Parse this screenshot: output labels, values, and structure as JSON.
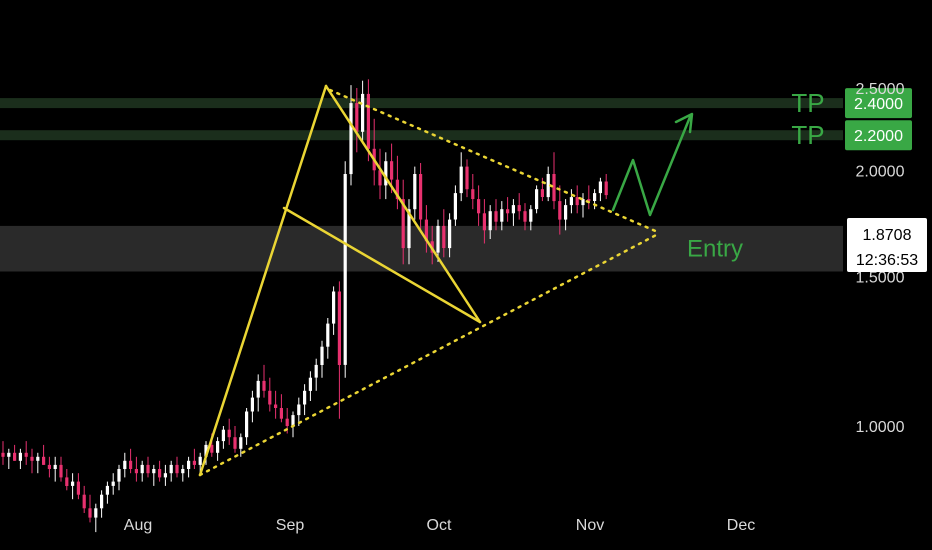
{
  "chart_data": {
    "type": "candlestick",
    "title": "",
    "xlabel": "",
    "ylabel": "",
    "x_ticks": [
      "Aug",
      "Sep",
      "Oct",
      "Nov",
      "Dec"
    ],
    "y_ticks": [
      "2.5000",
      "2.0000",
      "1.5000",
      "1.0000"
    ],
    "ylim": [
      0.72,
      2.6
    ],
    "grid": false,
    "last_price": "1.8708",
    "countdown": "12:36:53",
    "levels": [
      {
        "label": "TP",
        "value": 2.4,
        "price_tag": "2.4000"
      },
      {
        "label": "TP",
        "value": 2.2,
        "price_tag": "2.2000"
      }
    ],
    "entry_zone": {
      "label": "Entry",
      "low": 1.52,
      "high": 1.72
    },
    "candles": [
      [
        0.93,
        0.96,
        0.9,
        0.92
      ],
      [
        0.92,
        0.94,
        0.89,
        0.93
      ],
      [
        0.93,
        0.95,
        0.91,
        0.91
      ],
      [
        0.91,
        0.94,
        0.89,
        0.93
      ],
      [
        0.93,
        0.96,
        0.9,
        0.92
      ],
      [
        0.92,
        0.94,
        0.88,
        0.91
      ],
      [
        0.91,
        0.93,
        0.88,
        0.92
      ],
      [
        0.92,
        0.95,
        0.9,
        0.9
      ],
      [
        0.9,
        0.92,
        0.87,
        0.89
      ],
      [
        0.89,
        0.92,
        0.86,
        0.9
      ],
      [
        0.9,
        0.92,
        0.86,
        0.87
      ],
      [
        0.87,
        0.89,
        0.84,
        0.85
      ],
      [
        0.85,
        0.88,
        0.82,
        0.86
      ],
      [
        0.86,
        0.88,
        0.82,
        0.83
      ],
      [
        0.83,
        0.85,
        0.79,
        0.8
      ],
      [
        0.8,
        0.83,
        0.77,
        0.78
      ],
      [
        0.78,
        0.81,
        0.75,
        0.8
      ],
      [
        0.8,
        0.84,
        0.78,
        0.83
      ],
      [
        0.83,
        0.86,
        0.81,
        0.85
      ],
      [
        0.85,
        0.88,
        0.83,
        0.86
      ],
      [
        0.86,
        0.9,
        0.84,
        0.89
      ],
      [
        0.89,
        0.93,
        0.87,
        0.91
      ],
      [
        0.91,
        0.94,
        0.88,
        0.89
      ],
      [
        0.89,
        0.92,
        0.86,
        0.88
      ],
      [
        0.88,
        0.91,
        0.86,
        0.9
      ],
      [
        0.9,
        0.92,
        0.87,
        0.88
      ],
      [
        0.88,
        0.9,
        0.85,
        0.89
      ],
      [
        0.89,
        0.91,
        0.86,
        0.87
      ],
      [
        0.87,
        0.9,
        0.85,
        0.88
      ],
      [
        0.88,
        0.91,
        0.86,
        0.9
      ],
      [
        0.9,
        0.92,
        0.87,
        0.88
      ],
      [
        0.88,
        0.9,
        0.86,
        0.89
      ],
      [
        0.89,
        0.92,
        0.87,
        0.91
      ],
      [
        0.91,
        0.94,
        0.89,
        0.9
      ],
      [
        0.9,
        0.93,
        0.88,
        0.92
      ],
      [
        0.92,
        0.96,
        0.9,
        0.95
      ],
      [
        0.95,
        0.98,
        0.92,
        0.93
      ],
      [
        0.93,
        0.97,
        0.91,
        0.96
      ],
      [
        0.96,
        1.0,
        0.94,
        0.99
      ],
      [
        0.99,
        1.02,
        0.95,
        0.97
      ],
      [
        0.97,
        1.0,
        0.93,
        0.94
      ],
      [
        0.94,
        0.98,
        0.92,
        0.97
      ],
      [
        0.97,
        1.05,
        0.95,
        1.04
      ],
      [
        1.04,
        1.1,
        1.01,
        1.08
      ],
      [
        1.08,
        1.15,
        1.04,
        1.13
      ],
      [
        1.13,
        1.18,
        1.08,
        1.1
      ],
      [
        1.1,
        1.14,
        1.04,
        1.06
      ],
      [
        1.06,
        1.1,
        1.02,
        1.05
      ],
      [
        1.05,
        1.09,
        1.01,
        1.02
      ],
      [
        1.02,
        1.05,
        0.98,
        1.0
      ],
      [
        1.0,
        1.04,
        0.97,
        1.03
      ],
      [
        1.03,
        1.08,
        1.0,
        1.06
      ],
      [
        1.06,
        1.12,
        1.03,
        1.1
      ],
      [
        1.1,
        1.16,
        1.07,
        1.14
      ],
      [
        1.14,
        1.2,
        1.1,
        1.18
      ],
      [
        1.18,
        1.26,
        1.14,
        1.24
      ],
      [
        1.24,
        1.34,
        1.2,
        1.32
      ],
      [
        1.32,
        1.46,
        1.28,
        1.44
      ],
      [
        1.44,
        1.48,
        1.02,
        1.18
      ],
      [
        1.18,
        2.05,
        1.14,
        1.98
      ],
      [
        1.98,
        2.52,
        1.92,
        2.4
      ],
      [
        2.4,
        2.5,
        2.1,
        2.22
      ],
      [
        2.22,
        2.55,
        2.15,
        2.46
      ],
      [
        2.46,
        2.56,
        2.05,
        2.12
      ],
      [
        2.12,
        2.3,
        1.92,
        2.0
      ],
      [
        2.0,
        2.12,
        1.85,
        1.92
      ],
      [
        1.92,
        2.1,
        1.85,
        2.05
      ],
      [
        2.05,
        2.15,
        1.88,
        1.95
      ],
      [
        1.95,
        2.08,
        1.8,
        1.85
      ],
      [
        1.85,
        1.95,
        1.55,
        1.62
      ],
      [
        1.62,
        1.85,
        1.55,
        1.8
      ],
      [
        1.8,
        2.02,
        1.75,
        1.98
      ],
      [
        1.98,
        2.04,
        1.7,
        1.75
      ],
      [
        1.75,
        1.82,
        1.6,
        1.65
      ],
      [
        1.65,
        1.72,
        1.55,
        1.6
      ],
      [
        1.6,
        1.75,
        1.56,
        1.72
      ],
      [
        1.72,
        1.8,
        1.58,
        1.62
      ],
      [
        1.62,
        1.78,
        1.58,
        1.75
      ],
      [
        1.75,
        1.92,
        1.72,
        1.88
      ],
      [
        1.88,
        2.1,
        1.84,
        2.02
      ],
      [
        2.02,
        2.06,
        1.86,
        1.9
      ],
      [
        1.9,
        1.98,
        1.8,
        1.85
      ],
      [
        1.85,
        1.92,
        1.72,
        1.78
      ],
      [
        1.78,
        1.85,
        1.64,
        1.7
      ],
      [
        1.7,
        1.82,
        1.66,
        1.79
      ],
      [
        1.79,
        1.85,
        1.7,
        1.74
      ],
      [
        1.74,
        1.84,
        1.7,
        1.8
      ],
      [
        1.8,
        1.86,
        1.74,
        1.78
      ],
      [
        1.78,
        1.85,
        1.72,
        1.82
      ],
      [
        1.82,
        1.88,
        1.75,
        1.79
      ],
      [
        1.79,
        1.83,
        1.7,
        1.74
      ],
      [
        1.74,
        1.82,
        1.7,
        1.8
      ],
      [
        1.8,
        1.92,
        1.78,
        1.9
      ],
      [
        1.9,
        1.96,
        1.84,
        1.86
      ],
      [
        1.86,
        2.02,
        1.84,
        1.98
      ],
      [
        1.98,
        2.1,
        1.8,
        1.84
      ],
      [
        1.84,
        1.92,
        1.68,
        1.75
      ],
      [
        1.75,
        1.85,
        1.7,
        1.82
      ],
      [
        1.82,
        1.9,
        1.78,
        1.86
      ],
      [
        1.86,
        1.92,
        1.78,
        1.82
      ],
      [
        1.82,
        1.88,
        1.76,
        1.85
      ],
      [
        1.85,
        1.92,
        1.8,
        1.84
      ],
      [
        1.84,
        1.9,
        1.8,
        1.88
      ],
      [
        1.88,
        1.96,
        1.84,
        1.94
      ],
      [
        1.94,
        1.98,
        1.85,
        1.87
      ]
    ]
  },
  "colors": {
    "background": "#000000",
    "up_candle": "#ffffff",
    "down_candle": "#e8316f",
    "drawing_yellow": "#ead534",
    "tp_green": "#39a845",
    "tp_line": "#1b2e1c",
    "entry_zone": "#2a2a2a",
    "axis_text": "#d9d9d9"
  }
}
